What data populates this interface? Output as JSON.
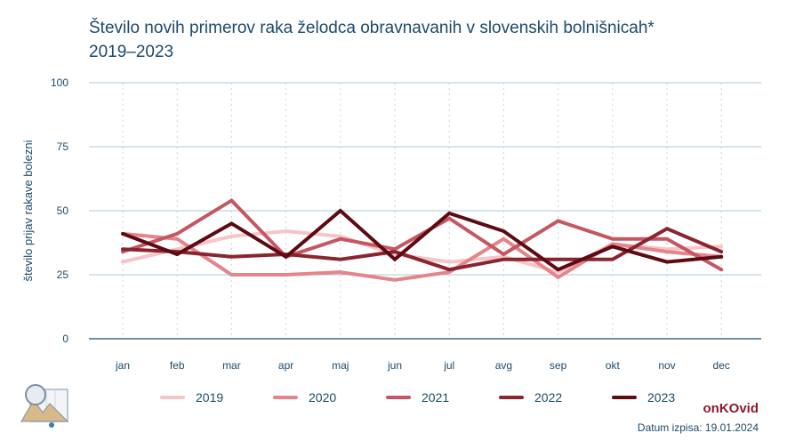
{
  "title_line1": "Število novih primerov raka želodca obravnavanih v slovenskih bolnišnicah*",
  "title_line2": "2019–2023",
  "brand": "onKOvid",
  "datum": "Datum izpisa: 19.01.2024",
  "chart_data": {
    "type": "line",
    "ylabel": "število prijav rakave bolezni",
    "ylim": [
      0,
      100
    ],
    "yticks": [
      0,
      25,
      50,
      75,
      100
    ],
    "categories": [
      "jan",
      "feb",
      "mar",
      "apr",
      "maj",
      "jun",
      "jul",
      "avg",
      "sep",
      "okt",
      "nov",
      "dec"
    ],
    "series": [
      {
        "name": "2019",
        "color": "#f7c4c8",
        "values": [
          30,
          35,
          40,
          42,
          40,
          33,
          30,
          32,
          26,
          37,
          35,
          36
        ]
      },
      {
        "name": "2020",
        "color": "#e4848b",
        "values": [
          41,
          39,
          25,
          25,
          26,
          23,
          26,
          39,
          24,
          37,
          34,
          32
        ]
      },
      {
        "name": "2021",
        "color": "#c55762",
        "values": [
          34,
          41,
          54,
          32,
          39,
          35,
          47,
          33,
          46,
          39,
          39,
          27
        ]
      },
      {
        "name": "2022",
        "color": "#8a2530",
        "values": [
          35,
          34,
          32,
          33,
          31,
          34,
          27,
          31,
          31,
          31,
          43,
          34
        ]
      },
      {
        "name": "2023",
        "color": "#5e0a12",
        "values": [
          41,
          33,
          45,
          32,
          50,
          31,
          49,
          42,
          27,
          36,
          30,
          32
        ]
      }
    ]
  }
}
